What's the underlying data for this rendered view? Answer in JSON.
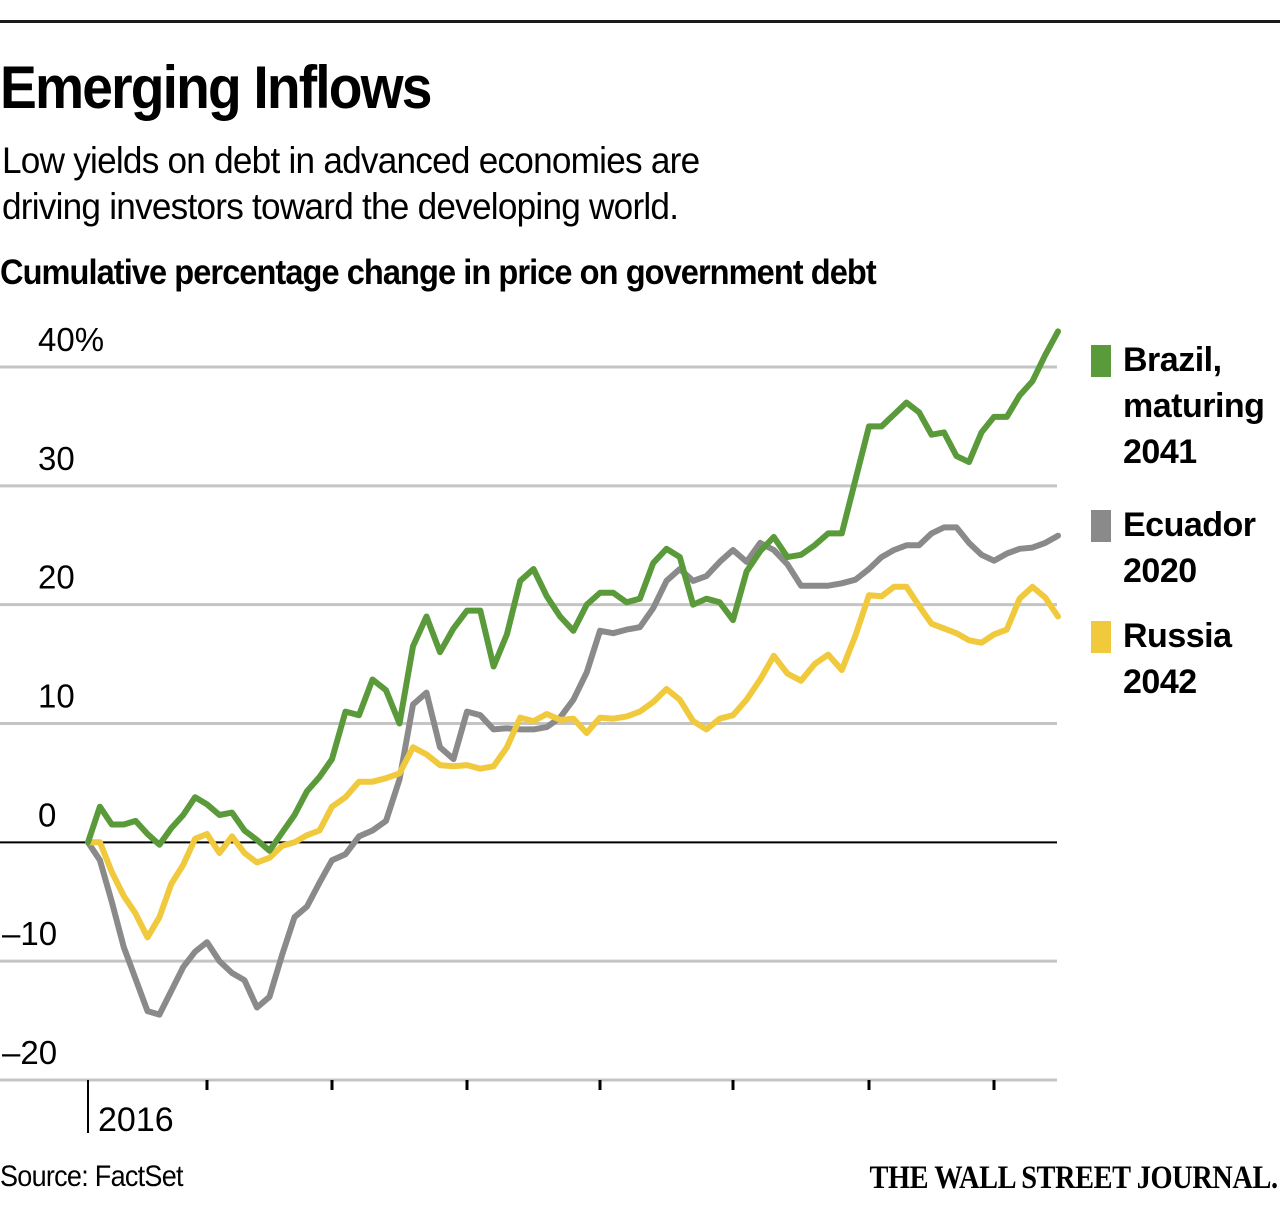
{
  "header": {
    "title": "Emerging Inflows",
    "subtitle_lines": [
      "Low yields on debt in advanced economies are",
      "driving investors toward the developing world."
    ]
  },
  "footer": {
    "source": "Source: FactSet",
    "publisher": "THE WALL STREET JOURNAL."
  },
  "chart_data": {
    "type": "line",
    "title": "Cumulative percentage change in price on government debt",
    "xlabel": "",
    "ylabel": "",
    "x_unit": "months since start of 2016",
    "x_range": [
      0,
      7.5
    ],
    "x_ticks": [
      0,
      1,
      2,
      3,
      4,
      5,
      6,
      7
    ],
    "x_tick_labels": [
      "2016",
      "",
      "",
      "",
      "",
      "",
      "",
      ""
    ],
    "ylim": [
      -20,
      40
    ],
    "y_ticks": [
      40,
      30,
      20,
      10,
      0,
      -10,
      -20
    ],
    "y_tick_labels": [
      "40%",
      "30",
      "20",
      "10",
      "0",
      "-10",
      "-20"
    ],
    "grid": true,
    "zero_line": true,
    "legend_placement": "right",
    "x": [
      0,
      0.1,
      0.2,
      0.3,
      0.4,
      0.5,
      0.6,
      0.7,
      0.8,
      0.9,
      1.0,
      1.1,
      1.2,
      1.3,
      1.4,
      1.5,
      1.6,
      1.7,
      1.8,
      1.9,
      2.0,
      2.1,
      2.2,
      2.3,
      2.4,
      2.5,
      2.6,
      2.7,
      2.8,
      2.9,
      3.0,
      3.1,
      3.2,
      3.3,
      3.4,
      3.5,
      3.6,
      3.7,
      3.8,
      3.9,
      4.0,
      4.1,
      4.2,
      4.3,
      4.4,
      4.5,
      4.6,
      4.7,
      4.8,
      4.9,
      5.0,
      5.1,
      5.2,
      5.3,
      5.4,
      5.5,
      5.6,
      5.7,
      5.8,
      5.9,
      6.0,
      6.1,
      6.2,
      6.3,
      6.4,
      6.5,
      6.6,
      6.7,
      6.8,
      6.9,
      7.0,
      7.1,
      7.2,
      7.3,
      7.4,
      7.5
    ],
    "series": [
      {
        "name": "Brazil, maturing 2041",
        "label_lines": [
          "Brazil,",
          "maturing",
          "2041"
        ],
        "color": "#5b9a3a",
        "values": [
          0,
          3,
          1.5,
          1.5,
          1.8,
          0.7,
          -0.2,
          1.2,
          2.3,
          3.8,
          3.2,
          2.3,
          2.5,
          1,
          0.2,
          -0.7,
          0.8,
          2.3,
          4.3,
          5.5,
          7,
          11,
          10.7,
          13.7,
          12.8,
          10,
          16.5,
          19,
          16,
          18,
          19.5,
          19.5,
          14.8,
          17.5,
          22,
          23,
          20.7,
          19,
          17.8,
          20,
          21,
          21,
          20.2,
          20.5,
          23.5,
          24.7,
          24,
          20,
          20.5,
          20.2,
          18.7,
          22.8,
          24.5,
          25.7,
          24,
          24.2,
          25,
          26,
          26,
          30.5,
          35,
          35,
          36,
          37,
          36.2,
          34.3,
          34.5,
          32.5,
          32,
          34.5,
          35.8,
          35.8,
          37.6,
          38.8,
          41,
          43
        ]
      },
      {
        "name": "Ecuador 2020",
        "label_lines": [
          "Ecuador",
          "2020"
        ],
        "color": "#8a8a8a",
        "values": [
          0,
          -1.5,
          -5,
          -8.8,
          -11.5,
          -14.2,
          -14.5,
          -12.5,
          -10.5,
          -9.2,
          -8.4,
          -10,
          -11,
          -11.6,
          -13.9,
          -13,
          -9.5,
          -6.3,
          -5.4,
          -3.4,
          -1.5,
          -1,
          0.5,
          1,
          1.8,
          5.3,
          11.6,
          12.6,
          8,
          7,
          11,
          10.7,
          9.5,
          9.6,
          9.5,
          9.5,
          9.7,
          10.5,
          12,
          14.3,
          17.8,
          17.6,
          17.9,
          18.1,
          19.7,
          22,
          23,
          22,
          22.4,
          23.6,
          24.6,
          23.6,
          25.2,
          24.6,
          23.4,
          21.6,
          21.6,
          21.6,
          21.8,
          22.1,
          23,
          24,
          24.6,
          25,
          25,
          26,
          26.5,
          26.5,
          25.2,
          24.2,
          23.7,
          24.3,
          24.7,
          24.8,
          25.2,
          25.8
        ]
      },
      {
        "name": "Russia 2042",
        "label_lines": [
          "Russia",
          "2042"
        ],
        "color": "#f0c93c",
        "values": [
          0,
          0,
          -2.5,
          -4.5,
          -6,
          -8,
          -6.3,
          -3.5,
          -1.9,
          0.3,
          0.7,
          -0.9,
          0.5,
          -0.9,
          -1.7,
          -1.3,
          -0.3,
          0,
          0.6,
          1,
          3,
          3.8,
          5.1,
          5.1,
          5.4,
          5.8,
          8,
          7.4,
          6.5,
          6.4,
          6.5,
          6.2,
          6.4,
          8,
          10.5,
          10.2,
          10.8,
          10.3,
          10.4,
          9.2,
          10.5,
          10.4,
          10.6,
          11,
          11.8,
          12.9,
          12,
          10.2,
          9.5,
          10.4,
          10.7,
          12,
          13.7,
          15.7,
          14.2,
          13.6,
          15,
          15.8,
          14.5,
          17.4,
          20.8,
          20.7,
          21.5,
          21.5,
          19.9,
          18.4,
          18,
          17.6,
          17,
          16.8,
          17.5,
          17.9,
          20.5,
          21.5,
          20.6,
          19
        ]
      }
    ]
  }
}
